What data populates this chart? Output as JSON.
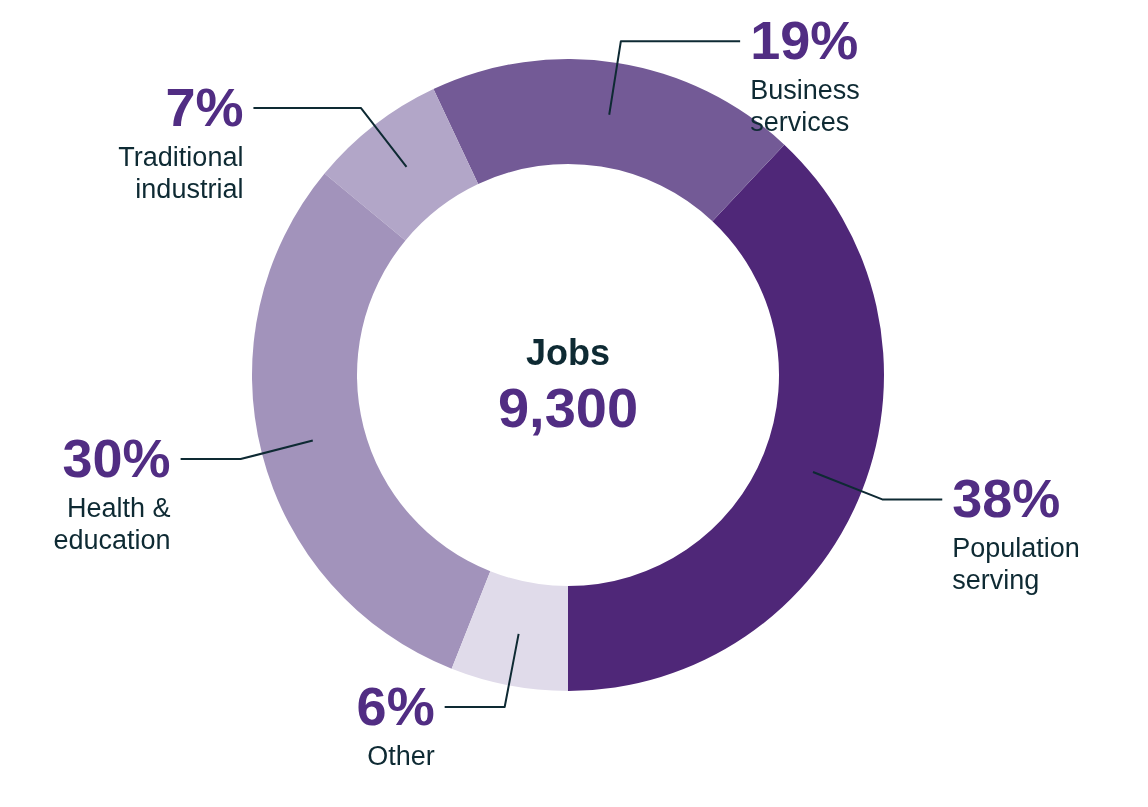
{
  "chart_data": {
    "type": "donut",
    "title": "Jobs",
    "annotations": [
      "9,300"
    ],
    "categories": [
      "Population serving",
      "Business services",
      "Traditional industrial",
      "Health & education",
      "Other"
    ],
    "values": [
      38,
      19,
      7,
      30,
      6
    ],
    "value_labels": [
      "38%",
      "19%",
      "7%",
      "30%",
      "6%"
    ],
    "colors": [
      "#4f2778",
      "#735a96",
      "#b2a6c8",
      "#a293bb",
      "#e0dbea"
    ]
  }
}
